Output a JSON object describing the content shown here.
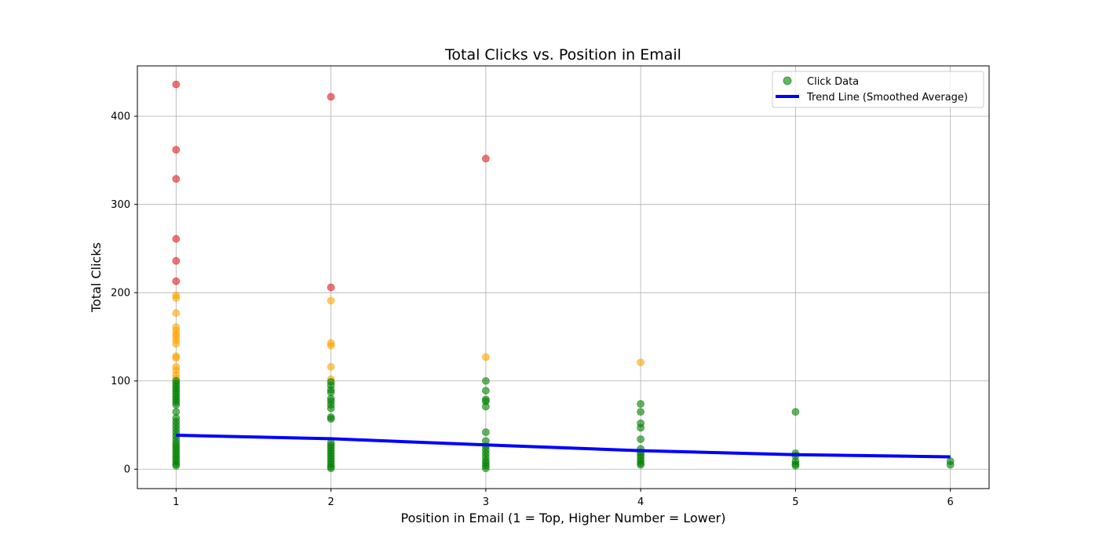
{
  "chart_data": {
    "type": "scatter",
    "title": "Total Clicks vs. Position in Email",
    "xlabel": "Position in Email (1 = Top, Higher Number = Lower)",
    "ylabel": "Total Clicks",
    "xlim": [
      0.75,
      6.25
    ],
    "ylim": [
      -22,
      457
    ],
    "xticks": [
      1,
      2,
      3,
      4,
      5,
      6
    ],
    "yticks": [
      0,
      100,
      200,
      300,
      400
    ],
    "grid": true,
    "legend_position": "top-right",
    "colors": {
      "green": "#008000",
      "orange": "#FFA500",
      "red": "#E41A1C",
      "trend": "#0000FF",
      "grid": "#b0b0b0"
    },
    "series": [
      {
        "name": "Click Data",
        "type": "scatter",
        "points": [
          {
            "x": 1,
            "y": 436,
            "c": "red"
          },
          {
            "x": 1,
            "y": 362,
            "c": "red"
          },
          {
            "x": 1,
            "y": 329,
            "c": "red"
          },
          {
            "x": 1,
            "y": 261,
            "c": "red"
          },
          {
            "x": 1,
            "y": 236,
            "c": "red"
          },
          {
            "x": 1,
            "y": 213,
            "c": "red"
          },
          {
            "x": 1,
            "y": 197,
            "c": "orange"
          },
          {
            "x": 1,
            "y": 194,
            "c": "orange"
          },
          {
            "x": 1,
            "y": 177,
            "c": "orange"
          },
          {
            "x": 1,
            "y": 161,
            "c": "orange"
          },
          {
            "x": 1,
            "y": 157,
            "c": "orange"
          },
          {
            "x": 1,
            "y": 153,
            "c": "orange"
          },
          {
            "x": 1,
            "y": 150,
            "c": "orange"
          },
          {
            "x": 1,
            "y": 146,
            "c": "orange"
          },
          {
            "x": 1,
            "y": 142,
            "c": "orange"
          },
          {
            "x": 1,
            "y": 128,
            "c": "orange"
          },
          {
            "x": 1,
            "y": 126,
            "c": "orange"
          },
          {
            "x": 1,
            "y": 116,
            "c": "orange"
          },
          {
            "x": 1,
            "y": 112,
            "c": "orange"
          },
          {
            "x": 1,
            "y": 107,
            "c": "orange"
          },
          {
            "x": 1,
            "y": 103,
            "c": "orange"
          },
          {
            "x": 1,
            "y": 100,
            "c": "green"
          },
          {
            "x": 1,
            "y": 97,
            "c": "green"
          },
          {
            "x": 1,
            "y": 94,
            "c": "green"
          },
          {
            "x": 1,
            "y": 91,
            "c": "green"
          },
          {
            "x": 1,
            "y": 88,
            "c": "green"
          },
          {
            "x": 1,
            "y": 85,
            "c": "green"
          },
          {
            "x": 1,
            "y": 82,
            "c": "green"
          },
          {
            "x": 1,
            "y": 79,
            "c": "green"
          },
          {
            "x": 1,
            "y": 76,
            "c": "green"
          },
          {
            "x": 1,
            "y": 73,
            "c": "green"
          },
          {
            "x": 1,
            "y": 65,
            "c": "green"
          },
          {
            "x": 1,
            "y": 58,
            "c": "green"
          },
          {
            "x": 1,
            "y": 54,
            "c": "green"
          },
          {
            "x": 1,
            "y": 50,
            "c": "green"
          },
          {
            "x": 1,
            "y": 46,
            "c": "green"
          },
          {
            "x": 1,
            "y": 42,
            "c": "green"
          },
          {
            "x": 1,
            "y": 38,
            "c": "green"
          },
          {
            "x": 1,
            "y": 34,
            "c": "green"
          },
          {
            "x": 1,
            "y": 30,
            "c": "green"
          },
          {
            "x": 1,
            "y": 27,
            "c": "green"
          },
          {
            "x": 1,
            "y": 24,
            "c": "green"
          },
          {
            "x": 1,
            "y": 21,
            "c": "green"
          },
          {
            "x": 1,
            "y": 18,
            "c": "green"
          },
          {
            "x": 1,
            "y": 15,
            "c": "green"
          },
          {
            "x": 1,
            "y": 12,
            "c": "green"
          },
          {
            "x": 1,
            "y": 9,
            "c": "green"
          },
          {
            "x": 1,
            "y": 6,
            "c": "green"
          },
          {
            "x": 1,
            "y": 4,
            "c": "green"
          },
          {
            "x": 2,
            "y": 422,
            "c": "red"
          },
          {
            "x": 2,
            "y": 206,
            "c": "red"
          },
          {
            "x": 2,
            "y": 191,
            "c": "orange"
          },
          {
            "x": 2,
            "y": 143,
            "c": "orange"
          },
          {
            "x": 2,
            "y": 140,
            "c": "orange"
          },
          {
            "x": 2,
            "y": 116,
            "c": "orange"
          },
          {
            "x": 2,
            "y": 102,
            "c": "orange"
          },
          {
            "x": 2,
            "y": 99,
            "c": "green"
          },
          {
            "x": 2,
            "y": 95,
            "c": "green"
          },
          {
            "x": 2,
            "y": 90,
            "c": "green"
          },
          {
            "x": 2,
            "y": 87,
            "c": "green"
          },
          {
            "x": 2,
            "y": 80,
            "c": "green"
          },
          {
            "x": 2,
            "y": 77,
            "c": "green"
          },
          {
            "x": 2,
            "y": 73,
            "c": "green"
          },
          {
            "x": 2,
            "y": 69,
            "c": "green"
          },
          {
            "x": 2,
            "y": 59,
            "c": "green"
          },
          {
            "x": 2,
            "y": 57,
            "c": "green"
          },
          {
            "x": 2,
            "y": 30,
            "c": "green"
          },
          {
            "x": 2,
            "y": 27,
            "c": "green"
          },
          {
            "x": 2,
            "y": 24,
            "c": "green"
          },
          {
            "x": 2,
            "y": 21,
            "c": "green"
          },
          {
            "x": 2,
            "y": 18,
            "c": "green"
          },
          {
            "x": 2,
            "y": 15,
            "c": "green"
          },
          {
            "x": 2,
            "y": 12,
            "c": "green"
          },
          {
            "x": 2,
            "y": 9,
            "c": "green"
          },
          {
            "x": 2,
            "y": 6,
            "c": "green"
          },
          {
            "x": 2,
            "y": 3,
            "c": "green"
          },
          {
            "x": 2,
            "y": 1,
            "c": "green"
          },
          {
            "x": 3,
            "y": 352,
            "c": "red"
          },
          {
            "x": 3,
            "y": 127,
            "c": "orange"
          },
          {
            "x": 3,
            "y": 100,
            "c": "green"
          },
          {
            "x": 3,
            "y": 89,
            "c": "green"
          },
          {
            "x": 3,
            "y": 79,
            "c": "green"
          },
          {
            "x": 3,
            "y": 77,
            "c": "green"
          },
          {
            "x": 3,
            "y": 71,
            "c": "green"
          },
          {
            "x": 3,
            "y": 42,
            "c": "green"
          },
          {
            "x": 3,
            "y": 32,
            "c": "green"
          },
          {
            "x": 3,
            "y": 26,
            "c": "green"
          },
          {
            "x": 3,
            "y": 22,
            "c": "green"
          },
          {
            "x": 3,
            "y": 18,
            "c": "green"
          },
          {
            "x": 3,
            "y": 14,
            "c": "green"
          },
          {
            "x": 3,
            "y": 10,
            "c": "green"
          },
          {
            "x": 3,
            "y": 7,
            "c": "green"
          },
          {
            "x": 3,
            "y": 4,
            "c": "green"
          },
          {
            "x": 3,
            "y": 1,
            "c": "green"
          },
          {
            "x": 4,
            "y": 121,
            "c": "orange"
          },
          {
            "x": 4,
            "y": 74,
            "c": "green"
          },
          {
            "x": 4,
            "y": 65,
            "c": "green"
          },
          {
            "x": 4,
            "y": 52,
            "c": "green"
          },
          {
            "x": 4,
            "y": 47,
            "c": "green"
          },
          {
            "x": 4,
            "y": 34,
            "c": "green"
          },
          {
            "x": 4,
            "y": 23,
            "c": "green"
          },
          {
            "x": 4,
            "y": 19,
            "c": "green"
          },
          {
            "x": 4,
            "y": 16,
            "c": "green"
          },
          {
            "x": 4,
            "y": 13,
            "c": "green"
          },
          {
            "x": 4,
            "y": 10,
            "c": "green"
          },
          {
            "x": 4,
            "y": 7,
            "c": "green"
          },
          {
            "x": 4,
            "y": 5,
            "c": "green"
          },
          {
            "x": 5,
            "y": 65,
            "c": "green"
          },
          {
            "x": 5,
            "y": 18,
            "c": "green"
          },
          {
            "x": 5,
            "y": 15,
            "c": "green"
          },
          {
            "x": 5,
            "y": 9,
            "c": "green"
          },
          {
            "x": 5,
            "y": 6,
            "c": "green"
          },
          {
            "x": 5,
            "y": 4,
            "c": "green"
          },
          {
            "x": 6,
            "y": 9,
            "c": "green"
          },
          {
            "x": 6,
            "y": 5,
            "c": "green"
          }
        ]
      },
      {
        "name": "Trend Line (Smoothed Average)",
        "type": "line",
        "x": [
          1,
          2,
          3,
          4,
          5,
          6
        ],
        "y": [
          38.5,
          34.5,
          27.5,
          21,
          16.5,
          14
        ]
      }
    ]
  }
}
